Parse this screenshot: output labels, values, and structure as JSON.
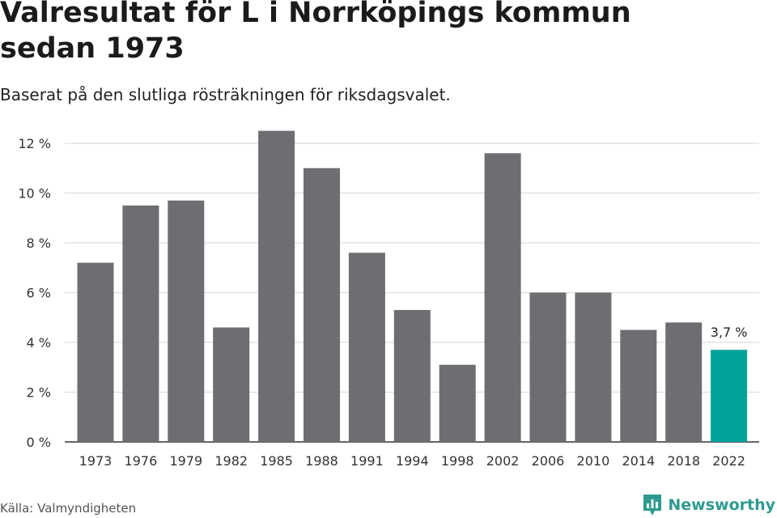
{
  "title": "Valresultat för L i Norrköpings kommun sedan 1973",
  "subtitle": "Baserat på den slutliga rösträkningen för riksdagsvalet.",
  "source": "Källa: Valmyndigheten",
  "brand": {
    "name": "Newsworthy",
    "icon": "newsworthy-logo-icon",
    "color": "#2f9a90"
  },
  "colors": {
    "bar": "#6e6d72",
    "highlight": "#00a39a",
    "grid": "#dddddd",
    "axis": "#333333"
  },
  "chart_data": {
    "type": "bar",
    "categories": [
      "1973",
      "1976",
      "1979",
      "1982",
      "1985",
      "1988",
      "1991",
      "1994",
      "1998",
      "2002",
      "2006",
      "2010",
      "2014",
      "2018",
      "2022"
    ],
    "values": [
      7.2,
      9.5,
      9.7,
      4.6,
      12.5,
      11.0,
      7.6,
      5.3,
      3.1,
      11.6,
      6.0,
      6.0,
      4.5,
      4.8,
      3.7
    ],
    "highlight_index": 14,
    "highlight_label": "3,7 %",
    "ylim": [
      0,
      12
    ],
    "yticks": [
      0,
      2,
      4,
      6,
      8,
      10,
      12
    ],
    "ytick_labels": [
      "0 %",
      "2 %",
      "4 %",
      "6 %",
      "8 %",
      "10 %",
      "12 %"
    ],
    "grid": true,
    "title": "Valresultat för L i Norrköpings kommun sedan 1973",
    "xlabel": "",
    "ylabel": ""
  }
}
